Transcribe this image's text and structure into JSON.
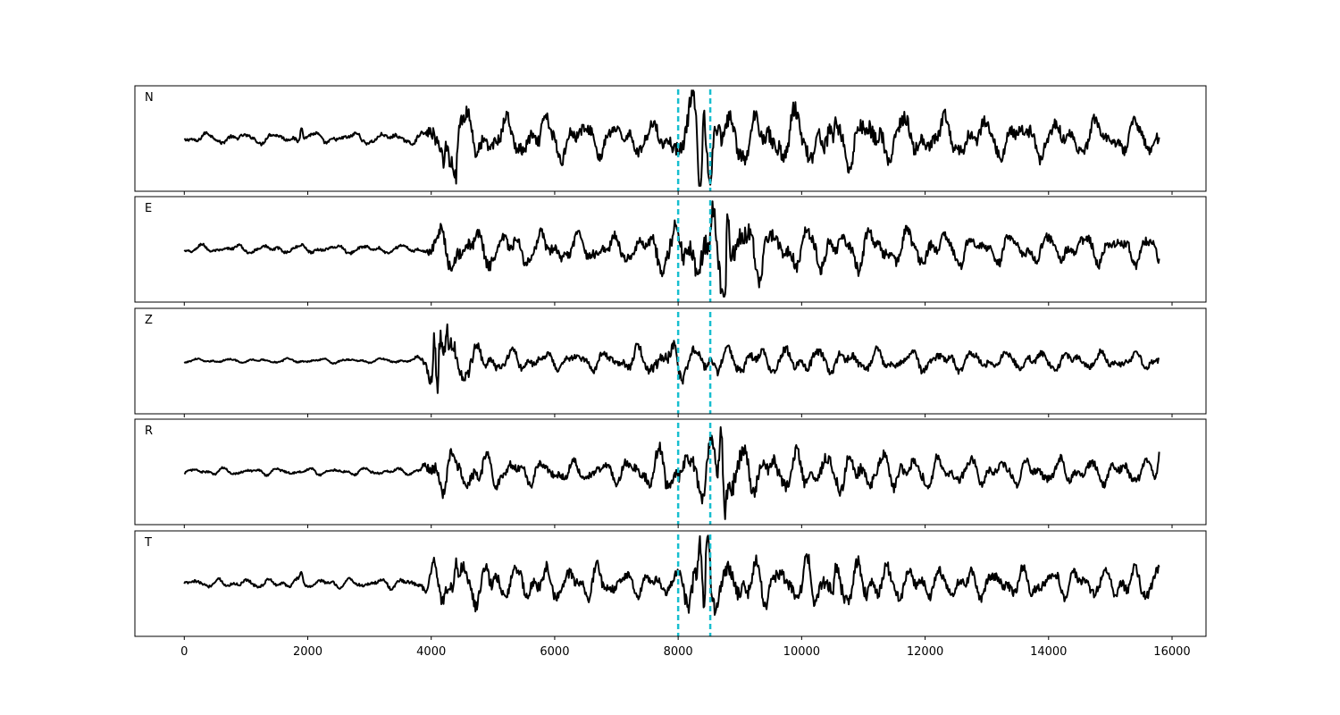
{
  "chart_data": {
    "type": "line",
    "title": "",
    "xlabel": "",
    "ylabel": "",
    "xlim": [
      -800,
      16550
    ],
    "x_ticks": [
      0,
      2000,
      4000,
      6000,
      8000,
      10000,
      12000,
      14000,
      16000
    ],
    "x_tick_labels": [
      "0",
      "2000",
      "4000",
      "6000",
      "8000",
      "10000",
      "12000",
      "14000",
      "16000"
    ],
    "n_samples": 15800,
    "grid": false,
    "line_color": "#000000",
    "marker_color": "#17becf",
    "vertical_markers": [
      8000,
      8520
    ],
    "panels": [
      {
        "name": "N",
        "envelope": [
          [
            0,
            0.12
          ],
          [
            3900,
            0.14
          ],
          [
            4000,
            0.55
          ],
          [
            4500,
            0.75
          ],
          [
            5000,
            0.45
          ],
          [
            6000,
            0.55
          ],
          [
            7000,
            0.35
          ],
          [
            7800,
            0.4
          ],
          [
            8300,
            1.0
          ],
          [
            8600,
            0.7
          ],
          [
            9000,
            0.6
          ],
          [
            10500,
            0.7
          ],
          [
            12000,
            0.5
          ],
          [
            14000,
            0.45
          ],
          [
            15800,
            0.4
          ]
        ],
        "spikes": [
          [
            1900,
            0.35
          ],
          [
            4200,
            -0.6
          ],
          [
            4400,
            -0.7
          ],
          [
            8350,
            -1.0
          ],
          [
            8420,
            0.95
          ],
          [
            8520,
            -0.85
          ],
          [
            10500,
            -0.6
          ]
        ]
      },
      {
        "name": "E",
        "envelope": [
          [
            0,
            0.1
          ],
          [
            3900,
            0.1
          ],
          [
            4000,
            0.45
          ],
          [
            4500,
            0.5
          ],
          [
            5500,
            0.4
          ],
          [
            6500,
            0.35
          ],
          [
            7200,
            0.3
          ],
          [
            7500,
            0.5
          ],
          [
            8300,
            0.75
          ],
          [
            8700,
            1.0
          ],
          [
            9500,
            0.55
          ],
          [
            11000,
            0.5
          ],
          [
            13000,
            0.35
          ],
          [
            15800,
            0.35
          ]
        ],
        "spikes": [
          [
            8750,
            -1.0
          ],
          [
            8800,
            0.95
          ],
          [
            8500,
            -0.6
          ],
          [
            15780,
            -0.3
          ]
        ]
      },
      {
        "name": "Z",
        "envelope": [
          [
            0,
            0.05
          ],
          [
            3700,
            0.06
          ],
          [
            3900,
            0.2
          ],
          [
            4100,
            1.0
          ],
          [
            4400,
            0.6
          ],
          [
            5000,
            0.3
          ],
          [
            6000,
            0.2
          ],
          [
            7000,
            0.25
          ],
          [
            8000,
            0.5
          ],
          [
            9000,
            0.35
          ],
          [
            10000,
            0.3
          ],
          [
            12000,
            0.25
          ],
          [
            15800,
            0.2
          ]
        ],
        "spikes": [
          [
            4050,
            0.95
          ],
          [
            4100,
            -1.0
          ],
          [
            4250,
            0.7
          ]
        ]
      },
      {
        "name": "R",
        "envelope": [
          [
            0,
            0.08
          ],
          [
            3800,
            0.08
          ],
          [
            4000,
            0.5
          ],
          [
            4500,
            0.5
          ],
          [
            5500,
            0.3
          ],
          [
            7000,
            0.25
          ],
          [
            7500,
            0.5
          ],
          [
            8400,
            0.6
          ],
          [
            8700,
            1.0
          ],
          [
            9200,
            0.5
          ],
          [
            11000,
            0.45
          ],
          [
            13000,
            0.3
          ],
          [
            15800,
            0.3
          ]
        ],
        "spikes": [
          [
            8750,
            -1.0
          ],
          [
            8700,
            0.95
          ],
          [
            15790,
            0.4
          ]
        ]
      },
      {
        "name": "T",
        "envelope": [
          [
            0,
            0.1
          ],
          [
            3800,
            0.12
          ],
          [
            4000,
            0.45
          ],
          [
            4500,
            0.6
          ],
          [
            5500,
            0.4
          ],
          [
            6500,
            0.45
          ],
          [
            7500,
            0.25
          ],
          [
            8000,
            0.35
          ],
          [
            8300,
            1.0
          ],
          [
            8600,
            0.6
          ],
          [
            9500,
            0.5
          ],
          [
            10500,
            0.6
          ],
          [
            12000,
            0.35
          ],
          [
            14000,
            0.35
          ],
          [
            15800,
            0.4
          ]
        ],
        "spikes": [
          [
            1900,
            0.2
          ],
          [
            4400,
            0.55
          ],
          [
            8350,
            1.0
          ],
          [
            8420,
            -0.85
          ],
          [
            8480,
            0.7
          ],
          [
            10500,
            -0.55
          ],
          [
            15800,
            0.3
          ]
        ]
      }
    ]
  }
}
